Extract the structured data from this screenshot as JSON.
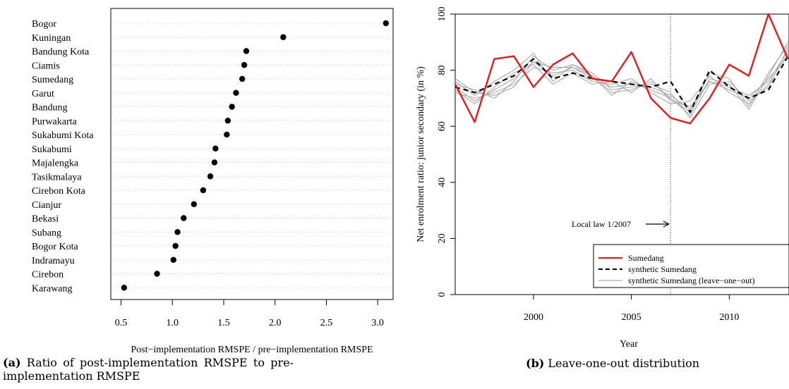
{
  "chart_data": [
    {
      "type": "scatter",
      "subtype": "dot-plot",
      "categories": [
        "Bogor",
        "Kuningan",
        "Bandung Kota",
        "Ciamis",
        "Sumedang",
        "Garut",
        "Bandung",
        "Purwakarta",
        "Sukabumi Kota",
        "Sukabumi",
        "Majalengka",
        "Tasikmalaya",
        "Cirebon Kota",
        "Cianjur",
        "Bekasi",
        "Subang",
        "Bogor Kota",
        "Indramayu",
        "Cirebon",
        "Karawang"
      ],
      "values": [
        3.08,
        2.08,
        1.72,
        1.7,
        1.68,
        1.62,
        1.58,
        1.54,
        1.53,
        1.42,
        1.41,
        1.37,
        1.3,
        1.21,
        1.11,
        1.05,
        1.03,
        1.01,
        0.85,
        0.53
      ],
      "xlabel": "Post−implementation RMSPE / pre−implementation RMSPE",
      "xlim": [
        0.5,
        3.1
      ],
      "xticks": [
        "0.5",
        "1.0",
        "1.5",
        "2.0",
        "2.5",
        "3.0"
      ],
      "grid": "dotted horizontal",
      "caption_label": "(a)",
      "caption_text": "Ratio of post-implementation RMSPE to pre-implementation RMSPE"
    },
    {
      "type": "line",
      "x": [
        1996,
        1997,
        1998,
        1999,
        2000,
        2001,
        2002,
        2003,
        2004,
        2005,
        2006,
        2007,
        2008,
        2009,
        2010,
        2011,
        2012,
        2013
      ],
      "xlim": [
        1996,
        2013
      ],
      "ylim": [
        0,
        100
      ],
      "xticks": [
        "2000",
        "2005",
        "2010"
      ],
      "yticks": [
        "0",
        "20",
        "40",
        "60",
        "80",
        "100"
      ],
      "xlabel": "Year",
      "ylabel": "Net enrolment ratio: junior secondary (in %)",
      "annotation": "Local law 1/2007",
      "vline_x": 2007,
      "series": [
        {
          "name": "Sumedang",
          "color": "#e41a1c",
          "style": "solid",
          "values": [
            75,
            61.5,
            84,
            85,
            74,
            82,
            86,
            77,
            76,
            86.5,
            70,
            63,
            61,
            70,
            82,
            78,
            100,
            84
          ]
        },
        {
          "name": "synthetic Sumedang",
          "color": "#000000",
          "style": "dashed",
          "values": [
            74,
            72,
            75,
            78,
            84,
            77,
            79,
            77,
            76,
            75,
            74,
            76,
            65,
            80,
            74,
            70,
            73,
            85
          ]
        },
        {
          "name": "synthetic Sumedang (leave−one−out)",
          "color": "#aaaaaa",
          "style": "solid",
          "values": [
            74,
            69,
            73,
            77,
            83,
            78,
            81,
            77,
            74,
            75,
            74,
            71,
            66,
            76,
            74,
            71,
            76,
            87
          ]
        },
        {
          "name": "",
          "color": "#aaaaaa",
          "style": "solid",
          "values": [
            76,
            71,
            76,
            80,
            86,
            76,
            82,
            78,
            72,
            73,
            76,
            70,
            64,
            77,
            75,
            66,
            78,
            90
          ]
        },
        {
          "name": "",
          "color": "#aaaaaa",
          "style": "solid",
          "values": [
            72,
            70,
            72,
            75,
            81,
            79,
            80,
            76,
            75,
            77,
            72,
            68,
            69,
            78,
            72,
            68,
            75,
            86
          ]
        },
        {
          "name": "",
          "color": "#aaaaaa",
          "style": "solid",
          "values": [
            75,
            73,
            70,
            76,
            85,
            80,
            82,
            79,
            73,
            74,
            75,
            72,
            63,
            75,
            76,
            69,
            74,
            88
          ]
        },
        {
          "name": "",
          "color": "#aaaaaa",
          "style": "solid",
          "values": [
            73,
            68,
            74,
            79,
            82,
            75,
            79,
            75,
            76,
            72,
            77,
            69,
            67,
            76,
            73,
            70,
            77,
            85
          ]
        },
        {
          "name": "",
          "color": "#aaaaaa",
          "style": "solid",
          "values": [
            77,
            72,
            71,
            74,
            83,
            81,
            81,
            78,
            71,
            76,
            73,
            70,
            65,
            79,
            77,
            67,
            79,
            89
          ]
        }
      ],
      "legend_position": "bottom-right",
      "caption_label": "(b)",
      "caption_text": "Leave-one-out distribution"
    }
  ]
}
